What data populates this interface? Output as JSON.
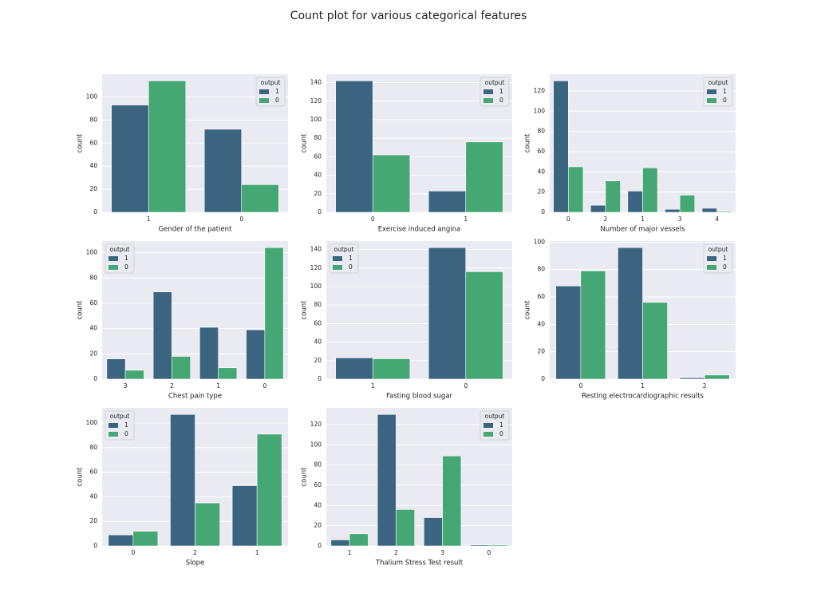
{
  "title": "Count plot for various categorical features",
  "chart_data": [
    {
      "type": "bar",
      "x_label": "Gender of the patient",
      "y_label": "count",
      "categories": [
        "1",
        "0"
      ],
      "series": [
        {
          "name": "1",
          "color": "#3b6481",
          "values": [
            93,
            72
          ]
        },
        {
          "name": "0",
          "color": "#45a874",
          "values": [
            114,
            24
          ]
        }
      ],
      "ylim": [
        0,
        119.7
      ],
      "yticks": [
        0,
        20,
        40,
        60,
        80,
        100
      ],
      "grid": true,
      "legend_title": "output",
      "legend": "upper right"
    },
    {
      "type": "bar",
      "x_label": "Exercise induced angina",
      "y_label": "count",
      "categories": [
        "0",
        "1"
      ],
      "series": [
        {
          "name": "1",
          "color": "#3b6481",
          "values": [
            142,
            23
          ]
        },
        {
          "name": "0",
          "color": "#45a874",
          "values": [
            62,
            76
          ]
        }
      ],
      "ylim": [
        0,
        149.1
      ],
      "yticks": [
        0,
        20,
        40,
        60,
        80,
        100,
        120,
        140
      ],
      "grid": true,
      "legend_title": "output",
      "legend": "upper right"
    },
    {
      "type": "bar",
      "x_label": "Number of major vessels",
      "y_label": "count",
      "categories": [
        "0",
        "2",
        "1",
        "3",
        "4"
      ],
      "series": [
        {
          "name": "1",
          "color": "#3b6481",
          "values": [
            130,
            7,
            21,
            3,
            4
          ]
        },
        {
          "name": "0",
          "color": "#45a874",
          "values": [
            45,
            31,
            44,
            17,
            1
          ]
        }
      ],
      "ylim": [
        0,
        136.5
      ],
      "yticks": [
        0,
        20,
        40,
        60,
        80,
        100,
        120
      ],
      "grid": true,
      "legend_title": "output",
      "legend": "upper right"
    },
    {
      "type": "bar",
      "x_label": "Chest pain type",
      "y_label": "count",
      "categories": [
        "3",
        "2",
        "1",
        "0"
      ],
      "series": [
        {
          "name": "1",
          "color": "#3b6481",
          "values": [
            16,
            69,
            41,
            39
          ]
        },
        {
          "name": "0",
          "color": "#45a874",
          "values": [
            7,
            18,
            9,
            104
          ]
        }
      ],
      "ylim": [
        0,
        109.2
      ],
      "yticks": [
        0,
        20,
        40,
        60,
        80,
        100
      ],
      "grid": true,
      "legend_title": "output",
      "legend": "upper left"
    },
    {
      "type": "bar",
      "x_label": "Fasting blood sugar",
      "y_label": "count",
      "categories": [
        "1",
        "0"
      ],
      "series": [
        {
          "name": "1",
          "color": "#3b6481",
          "values": [
            23,
            142
          ]
        },
        {
          "name": "0",
          "color": "#45a874",
          "values": [
            22,
            116
          ]
        }
      ],
      "ylim": [
        0,
        149.1
      ],
      "yticks": [
        0,
        20,
        40,
        60,
        80,
        100,
        120,
        140
      ],
      "grid": true,
      "legend_title": "output",
      "legend": "upper left"
    },
    {
      "type": "bar",
      "x_label": "Resting electrocardiographic results",
      "y_label": "count",
      "categories": [
        "0",
        "1",
        "2"
      ],
      "series": [
        {
          "name": "1",
          "color": "#3b6481",
          "values": [
            68,
            96,
            1
          ]
        },
        {
          "name": "0",
          "color": "#45a874",
          "values": [
            79,
            56,
            3
          ]
        }
      ],
      "ylim": [
        0,
        100.8
      ],
      "yticks": [
        0,
        20,
        40,
        60,
        80,
        100
      ],
      "grid": true,
      "legend_title": "output",
      "legend": "upper right"
    },
    {
      "type": "bar",
      "x_label": "Slope",
      "y_label": "count",
      "categories": [
        "0",
        "2",
        "1"
      ],
      "series": [
        {
          "name": "1",
          "color": "#3b6481",
          "values": [
            9,
            107,
            49
          ]
        },
        {
          "name": "0",
          "color": "#45a874",
          "values": [
            12,
            35,
            91
          ]
        }
      ],
      "ylim": [
        0,
        112.35
      ],
      "yticks": [
        0,
        20,
        40,
        60,
        80,
        100
      ],
      "grid": true,
      "legend_title": "output",
      "legend": "upper left"
    },
    {
      "type": "bar",
      "x_label": "Thalium Stress Test result",
      "y_label": "count",
      "categories": [
        "1",
        "2",
        "3",
        "0"
      ],
      "series": [
        {
          "name": "1",
          "color": "#3b6481",
          "values": [
            6,
            130,
            28,
            1
          ]
        },
        {
          "name": "0",
          "color": "#45a874",
          "values": [
            12,
            36,
            89,
            1
          ]
        }
      ],
      "ylim": [
        0,
        136.5
      ],
      "yticks": [
        0,
        20,
        40,
        60,
        80,
        100,
        120
      ],
      "grid": true,
      "legend_title": "output",
      "legend": "upper right"
    }
  ]
}
